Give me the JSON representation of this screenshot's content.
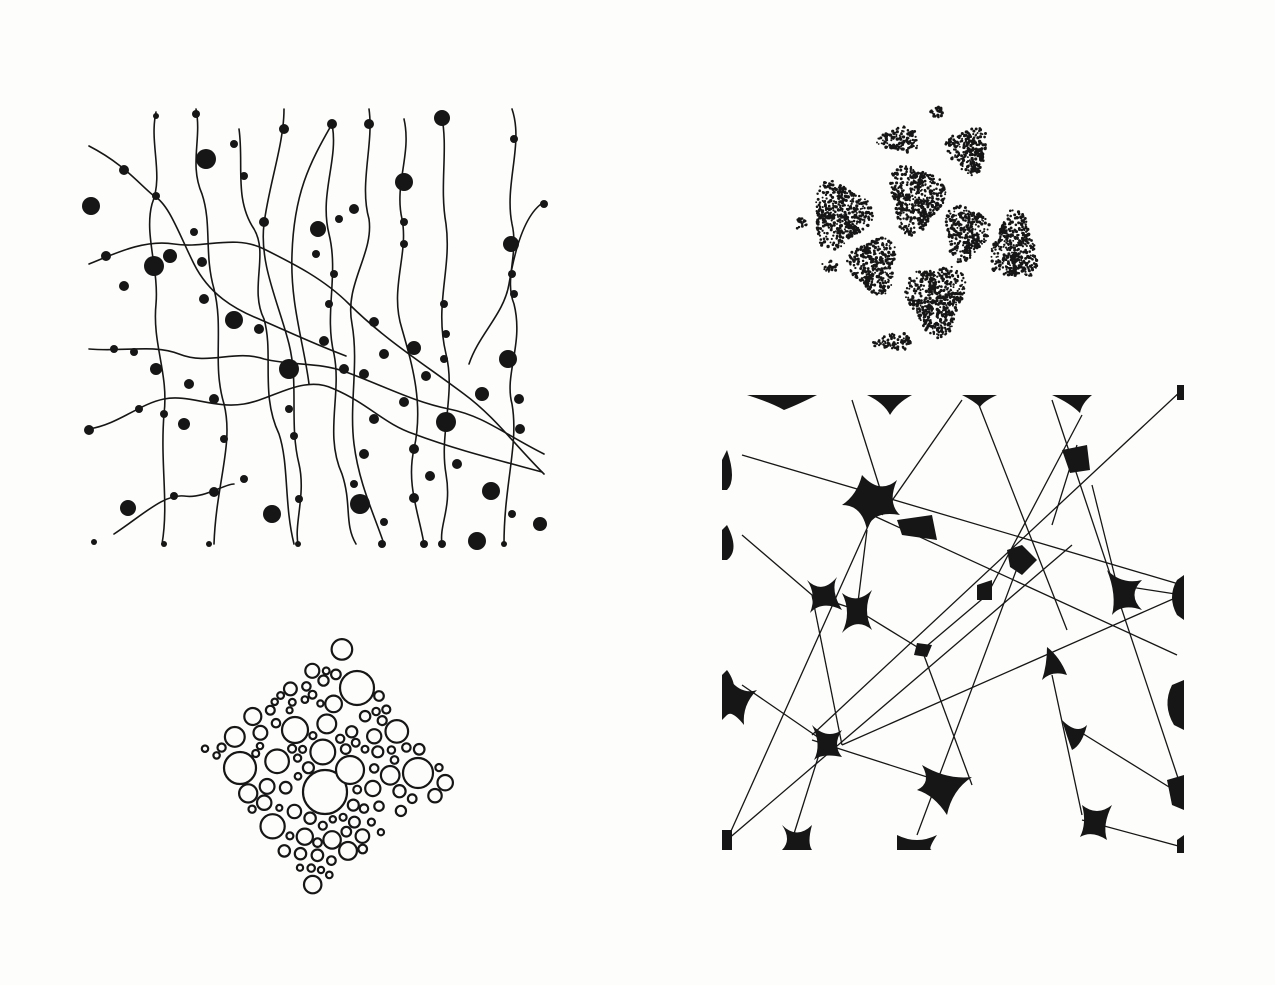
{
  "ink_color": "#161616",
  "paper_color": "#fdfdfb",
  "panels": [
    {
      "id": "strands",
      "motif": "dotted-vine-strands",
      "strand_count": 16
    },
    {
      "id": "stipple",
      "motif": "stippled-cell-clusters",
      "cell_count": 12
    },
    {
      "id": "bubbles",
      "motif": "packed-bubble-circles"
    },
    {
      "id": "web",
      "motif": "cracked-web-network"
    }
  ]
}
